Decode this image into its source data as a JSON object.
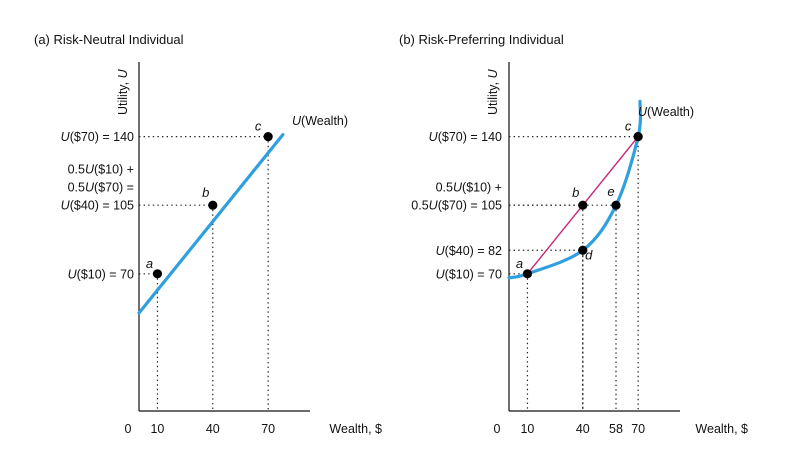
{
  "chart_data": [
    {
      "type": "line",
      "title": "(a) Risk-Neutral Individual",
      "xlabel": "Wealth, $",
      "ylabel": "Utility, U",
      "x_ticks": [
        "0",
        "10",
        "40",
        "70"
      ],
      "y_labels": [
        {
          "lines": [
            "U($70) = 140"
          ],
          "value": 140
        },
        {
          "lines": [
            "0.5U($10) +",
            "0.5U($70) =",
            "U($40) = 105"
          ],
          "value": 105
        },
        {
          "lines": [
            "U($10) = 70"
          ],
          "value": 70
        }
      ],
      "series": [
        {
          "name": "U(Wealth)",
          "color": "#2f9fe0",
          "x": [
            0,
            78
          ],
          "y": [
            50,
            141
          ]
        }
      ],
      "points": [
        {
          "label": "a",
          "x": 10,
          "y": 70
        },
        {
          "label": "b",
          "x": 40,
          "y": 105
        },
        {
          "label": "c",
          "x": 70,
          "y": 140
        }
      ],
      "ylim": [
        0,
        165
      ],
      "xlim": [
        0,
        90
      ],
      "grid": false
    },
    {
      "type": "line",
      "title": "(b) Risk-Preferring Individual",
      "xlabel": "Wealth, $",
      "ylabel": "Utility, U",
      "x_ticks": [
        "0",
        "10",
        "40",
        "58",
        "70"
      ],
      "y_labels": [
        {
          "lines": [
            "U($70) = 140"
          ],
          "value": 140
        },
        {
          "lines": [
            "0.5U($10) +",
            "0.5U($70) = 105"
          ],
          "value": 105
        },
        {
          "lines": [
            "U($40) = 82"
          ],
          "value": 82
        },
        {
          "lines": [
            "U($10) = 70"
          ],
          "value": 70
        }
      ],
      "series": [
        {
          "name": "U(Wealth)",
          "color": "#2f9fe0",
          "curve": "convex",
          "x": [
            0,
            10,
            40,
            58,
            70,
            71
          ],
          "y": [
            68,
            70,
            82,
            105,
            140,
            158
          ]
        },
        {
          "name": "chord",
          "color": "#c8277a",
          "x": [
            10,
            70
          ],
          "y": [
            70,
            140
          ]
        }
      ],
      "points": [
        {
          "label": "a",
          "x": 10,
          "y": 70
        },
        {
          "label": "b",
          "x": 40,
          "y": 105
        },
        {
          "label": "c",
          "x": 70,
          "y": 140
        },
        {
          "label": "d",
          "x": 40,
          "y": 82
        },
        {
          "label": "e",
          "x": 58,
          "y": 105
        }
      ],
      "ylim": [
        0,
        165
      ],
      "xlim": [
        0,
        90
      ],
      "grid": false
    }
  ]
}
